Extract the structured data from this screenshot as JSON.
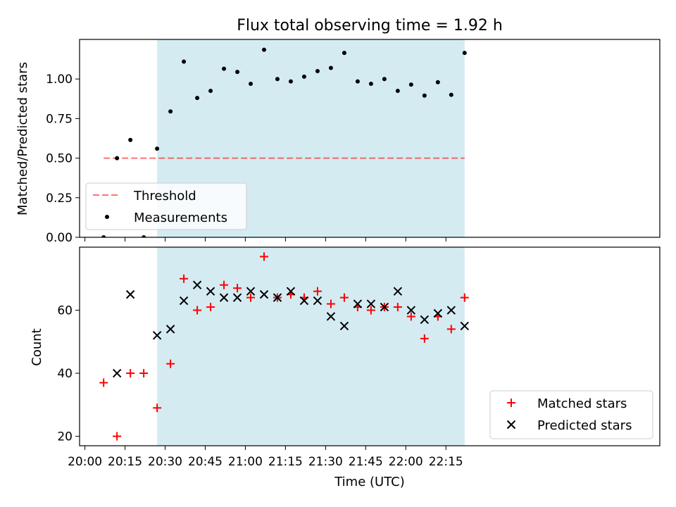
{
  "title": "Flux total observing time = 1.92 h",
  "colors": {
    "band": "#add8e6",
    "threshold": "#ff0000",
    "measurements": "#000000",
    "matched": "#ff0000",
    "predicted": "#000000"
  },
  "chart_data": [
    {
      "type": "scatter",
      "ylabel": "Matched/Predicted stars",
      "ylim": [
        0.0,
        1.25
      ],
      "yticks": [
        0.0,
        0.25,
        0.5,
        0.75,
        1.0
      ],
      "ytick_labels": [
        "0.00",
        "0.25",
        "0.50",
        "0.75",
        "1.00"
      ],
      "xlim_minutes": [
        -2,
        215
      ],
      "shaded_interval": [
        "20:27",
        "22:22"
      ],
      "threshold": {
        "name": "Threshold",
        "value": 0.5,
        "x_range": [
          "20:07",
          "22:22"
        ],
        "style": "dashed"
      },
      "series": [
        {
          "name": "Measurements",
          "x": [
            "20:07",
            "20:12",
            "20:17",
            "20:22",
            "20:27",
            "20:32",
            "20:37",
            "20:42",
            "20:47",
            "20:52",
            "20:57",
            "21:02",
            "21:07",
            "21:12",
            "21:17",
            "21:22",
            "21:27",
            "21:32",
            "21:37",
            "21:42",
            "21:47",
            "21:52",
            "21:57",
            "22:02",
            "22:07",
            "22:12",
            "22:17",
            "22:22"
          ],
          "values": [
            0.0,
            0.5,
            0.615,
            0.0,
            0.56,
            0.795,
            1.11,
            0.88,
            0.925,
            1.065,
            1.045,
            0.97,
            1.185,
            1.0,
            0.985,
            1.015,
            1.05,
            1.07,
            1.165,
            0.985,
            0.97,
            1.0,
            0.925,
            0.965,
            0.895,
            0.98,
            0.9,
            1.165
          ]
        }
      ],
      "legend": [
        "Threshold",
        "Measurements"
      ],
      "legend_position": "lower-left"
    },
    {
      "type": "scatter",
      "xlabel": "Time (UTC)",
      "ylabel": "Count",
      "ylim": [
        17,
        80
      ],
      "yticks": [
        20,
        40,
        60
      ],
      "ytick_labels": [
        "20",
        "40",
        "60"
      ],
      "xticks": [
        "20:00",
        "20:15",
        "20:30",
        "20:45",
        "21:00",
        "21:15",
        "21:30",
        "21:45",
        "22:00",
        "22:15"
      ],
      "xlim_minutes": [
        -2,
        215
      ],
      "shaded_interval": [
        "20:27",
        "22:22"
      ],
      "series": [
        {
          "name": "Matched stars",
          "marker": "plus",
          "x": [
            "20:07",
            "20:12",
            "20:17",
            "20:22",
            "20:27",
            "20:32",
            "20:37",
            "20:42",
            "20:47",
            "20:52",
            "20:57",
            "21:02",
            "21:07",
            "21:12",
            "21:17",
            "21:22",
            "21:27",
            "21:32",
            "21:37",
            "21:42",
            "21:47",
            "21:52",
            "21:57",
            "22:02",
            "22:07",
            "22:12",
            "22:17",
            "22:22"
          ],
          "values": [
            37,
            20,
            40,
            40,
            29,
            43,
            70,
            60,
            61,
            68,
            67,
            64,
            77,
            64,
            65,
            64,
            66,
            62,
            64,
            61,
            60,
            61,
            61,
            58,
            51,
            58,
            54,
            64
          ]
        },
        {
          "name": "Predicted stars",
          "marker": "x",
          "x": [
            "20:12",
            "20:17",
            "20:27",
            "20:32",
            "20:37",
            "20:42",
            "20:47",
            "20:52",
            "20:57",
            "21:02",
            "21:07",
            "21:12",
            "21:17",
            "21:22",
            "21:27",
            "21:32",
            "21:37",
            "21:42",
            "21:47",
            "21:52",
            "21:57",
            "22:02",
            "22:07",
            "22:12",
            "22:17",
            "22:22"
          ],
          "values": [
            40,
            65,
            52,
            54,
            63,
            68,
            66,
            64,
            64,
            66,
            65,
            64,
            66,
            63,
            63,
            58,
            55,
            62,
            62,
            61,
            66,
            60,
            57,
            59,
            60,
            55
          ]
        }
      ],
      "legend": [
        "Matched stars",
        "Predicted stars"
      ],
      "legend_position": "lower-right"
    }
  ]
}
